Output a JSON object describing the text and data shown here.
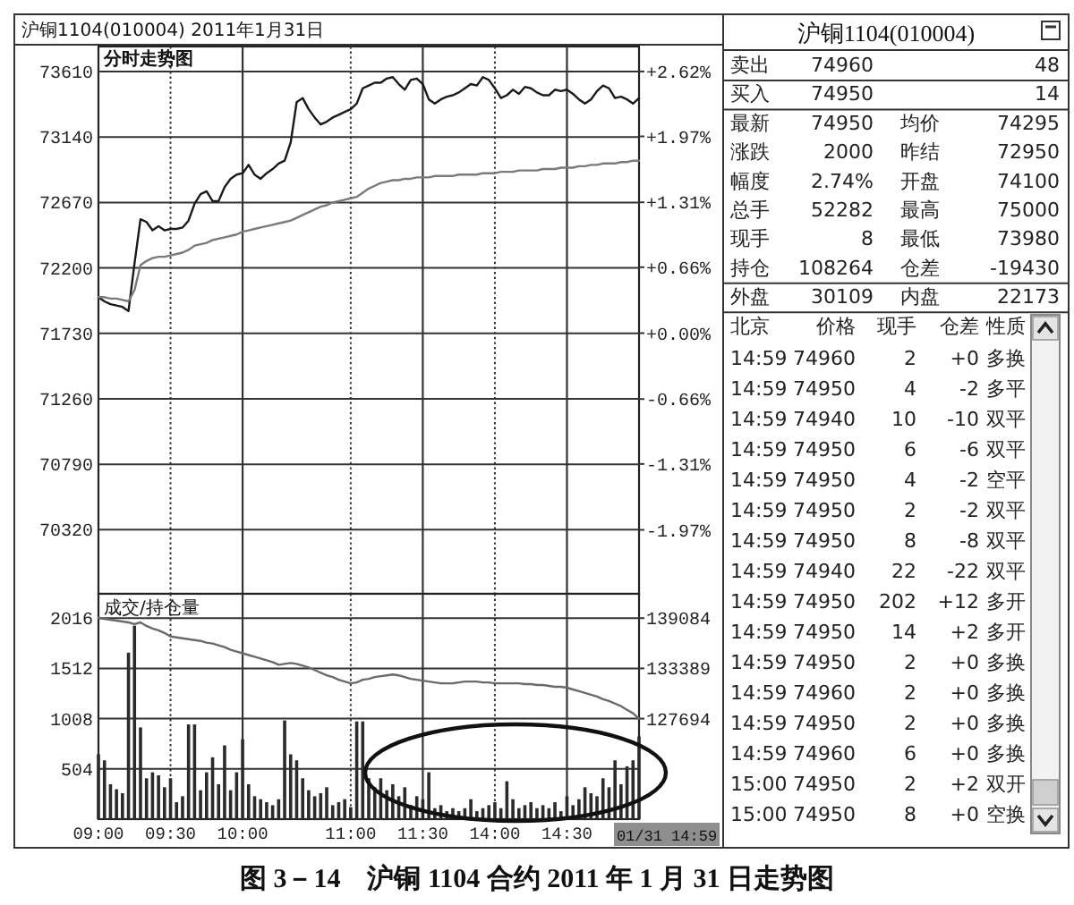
{
  "chart_data": [
    {
      "type": "line",
      "title": "沪铜1104(010004) 2011年1月31日",
      "subtitle": "分时走势图",
      "annotations": [
        "图 3－14　沪铜 1104 合约 2011 年 1 月 31 日走势图"
      ],
      "categories": [
        null,
        null,
        null,
        null,
        null,
        null,
        null,
        null,
        null,
        null,
        null,
        null,
        null,
        null,
        null,
        null,
        null,
        null,
        null,
        null,
        null,
        null,
        null,
        null,
        null,
        null,
        null,
        null,
        null,
        null,
        null,
        null,
        null,
        null,
        null,
        null,
        null,
        null,
        null,
        null,
        null,
        null,
        null,
        null,
        null,
        null,
        null,
        null,
        null,
        null,
        null,
        null,
        null,
        null,
        null,
        null,
        null,
        null,
        null,
        null,
        null,
        null,
        null,
        null,
        null,
        null,
        null,
        null,
        null,
        null,
        null,
        null,
        null,
        null,
        null,
        null,
        null,
        null,
        null,
        null,
        null,
        null,
        null,
        null,
        null,
        null,
        null,
        null,
        null,
        null,
        null
      ],
      "ylim": [
        69860,
        73790
      ],
      "yticks": [
        70320,
        70790,
        71260,
        71730,
        72200,
        72670,
        73140,
        73610
      ],
      "y2lim": [
        -2.61,
        2.87
      ],
      "y2ticks": [
        {
          "value": -1.97,
          "label": "-1.97%"
        },
        {
          "value": -1.31,
          "label": "-1.31%"
        },
        {
          "value": -0.66,
          "label": "-0.66%"
        },
        {
          "value": 0,
          "label": "+0.00%"
        },
        {
          "value": 0.66,
          "label": "+0.66%"
        },
        {
          "value": 1.31,
          "label": "+1.31%"
        },
        {
          "value": 1.97,
          "label": "+1.97%"
        },
        {
          "value": 2.62,
          "label": "+2.62%"
        }
      ],
      "grid": true,
      "series": [
        {
          "color": "#1a1a1a",
          "values": [
            71990,
            71960,
            71940,
            71930,
            71920,
            71890,
            72230,
            72550,
            72530,
            72470,
            72500,
            72470,
            72480,
            72480,
            72490,
            72540,
            72660,
            72730,
            72750,
            72680,
            72680,
            72780,
            72840,
            72870,
            72880,
            72940,
            72870,
            72840,
            72880,
            72910,
            72950,
            72970,
            73100,
            73390,
            73420,
            73340,
            73280,
            73230,
            73250,
            73280,
            73300,
            73320,
            73340,
            73380,
            73490,
            73510,
            73530,
            73530,
            73560,
            73570,
            73520,
            73480,
            73550,
            73560,
            73520,
            73410,
            73380,
            73410,
            73430,
            73440,
            73460,
            73490,
            73520,
            73510,
            73570,
            73550,
            73490,
            73420,
            73440,
            73480,
            73450,
            73500,
            73490,
            73460,
            73440,
            73440,
            73480,
            73470,
            73480,
            73450,
            73410,
            73380,
            73410,
            73470,
            73510,
            73490,
            73420,
            73430,
            73410,
            73380,
            73420
          ]
        },
        {
          "color": "#7a7a7a",
          "values": [
            71990,
            71990,
            71980,
            71980,
            71970,
            71960,
            72040,
            72220,
            72250,
            72270,
            72280,
            72280,
            72290,
            72300,
            72310,
            72330,
            72360,
            72370,
            72380,
            72400,
            72410,
            72420,
            72430,
            72440,
            72460,
            72470,
            72480,
            72490,
            72500,
            72510,
            72520,
            72530,
            72540,
            72560,
            72580,
            72600,
            72620,
            72640,
            72650,
            72670,
            72680,
            72690,
            72700,
            72710,
            72740,
            72770,
            72790,
            72810,
            72820,
            72830,
            72830,
            72840,
            72840,
            72850,
            72850,
            72850,
            72860,
            72860,
            72860,
            72860,
            72870,
            72870,
            72870,
            72870,
            72880,
            72880,
            72880,
            72890,
            72890,
            72890,
            72900,
            72900,
            72900,
            72900,
            72910,
            72910,
            72910,
            72920,
            72920,
            72920,
            72930,
            72930,
            72940,
            72940,
            72950,
            72950,
            72950,
            72960,
            72960,
            72970,
            72970
          ]
        }
      ]
    },
    {
      "type": "bar",
      "title": "成交/持仓量",
      "annotations": [
        "01/31 14:59"
      ],
      "categories": [
        "09:00",
        null,
        null,
        null,
        null,
        null,
        null,
        null,
        null,
        null,
        null,
        null,
        "09:30",
        null,
        null,
        null,
        null,
        null,
        null,
        null,
        null,
        null,
        null,
        null,
        "10:00",
        null,
        null,
        null,
        null,
        null,
        null,
        null,
        null,
        null,
        null,
        null,
        null,
        null,
        null,
        null,
        null,
        null,
        "11:00",
        null,
        null,
        null,
        null,
        null,
        null,
        null,
        null,
        null,
        null,
        null,
        "11:30",
        null,
        null,
        null,
        null,
        null,
        null,
        null,
        null,
        null,
        null,
        null,
        "14:00",
        null,
        null,
        null,
        null,
        null,
        null,
        null,
        null,
        null,
        null,
        null,
        "14:30",
        null,
        null,
        null,
        null,
        null,
        null,
        null,
        null,
        null,
        null,
        null,
        null
      ],
      "ylim": [
        0,
        2260
      ],
      "yticks": [
        504,
        1008,
        1512,
        2016
      ],
      "y2lim": [
        116304,
        141841
      ],
      "y2ticks": [
        127694,
        133389,
        139084
      ],
      "grid": true,
      "series": [
        {
          "color": "#2b2b2b",
          "values": [
            650,
            590,
            350,
            300,
            260,
            1670,
            1940,
            920,
            410,
            470,
            440,
            320,
            410,
            170,
            230,
            950,
            950,
            290,
            470,
            620,
            350,
            740,
            290,
            470,
            800,
            350,
            230,
            200,
            170,
            140,
            200,
            990,
            650,
            590,
            410,
            290,
            230,
            260,
            320,
            140,
            170,
            200,
            120,
            980,
            980,
            410,
            320,
            410,
            290,
            350,
            230,
            320,
            140,
            230,
            200,
            470,
            110,
            140,
            80,
            110,
            80,
            110,
            200,
            80,
            110,
            140,
            170,
            110,
            380,
            200,
            110,
            140,
            170,
            110,
            140,
            110,
            170,
            80,
            230,
            140,
            200,
            320,
            260,
            230,
            410,
            320,
            590,
            350,
            530,
            590,
            830
          ]
        },
        {
          "type": "line",
          "axis": "y2",
          "color": "#6a6a6a",
          "values": [
            139100,
            139000,
            138900,
            138800,
            138700,
            138600,
            138400,
            138600,
            138200,
            137900,
            137700,
            137400,
            137000,
            136900,
            136800,
            136700,
            136600,
            136500,
            136300,
            136200,
            136000,
            135800,
            135500,
            135300,
            135100,
            134900,
            134700,
            134500,
            134300,
            134100,
            133800,
            133900,
            134000,
            133900,
            133700,
            133500,
            133200,
            132900,
            132600,
            132400,
            132100,
            131900,
            131700,
            131800,
            132100,
            132200,
            132400,
            132500,
            132600,
            132700,
            132600,
            132400,
            132200,
            132100,
            132000,
            131900,
            131800,
            131700,
            131700,
            131700,
            131800,
            131900,
            131900,
            131900,
            131800,
            131800,
            131700,
            131700,
            131700,
            131700,
            131700,
            131600,
            131600,
            131500,
            131500,
            131400,
            131300,
            131300,
            131200,
            131000,
            130800,
            130600,
            130400,
            130200,
            129900,
            129700,
            129400,
            129100,
            128700,
            128300,
            127700
          ]
        }
      ]
    },
    {
      "type": "other",
      "title": "沪铜1104(010004)",
      "annotations": [
        "卖出 74960 48",
        "买入 74950 14",
        "最新 74950 均价 74295",
        "涨跌 2000 昨结 72950",
        "幅度 2.74% 开盘 74100",
        "总手 52282 最高 75000",
        "现手 8 最低 73980",
        "持仓 108264 仓差 -19430",
        "外盘 30109 内盘 22173",
        "北京 价格 现手 仓差 性质",
        "14:59 74960 2 +0 多换",
        "14:59 74950 4 -2 多平",
        "14:59 74940 10 -10 双平",
        "14:59 74950 6 -6 双平",
        "14:59 74950 4 -2 空平",
        "14:59 74950 2 -2 双平",
        "14:59 74950 8 -8 双平",
        "14:59 74940 22 -22 双平",
        "14:59 74950 202 +12 多开",
        "14:59 74950 14 +2 多开",
        "14:59 74950 2 +0 多换",
        "14:59 74960 2 +0 多换",
        "14:59 74950 2 +0 多换",
        "14:59 74960 6 +0 多换",
        "15:00 74950 2 +2 双开",
        "15:00 74950 8 +0 空换"
      ]
    }
  ]
}
